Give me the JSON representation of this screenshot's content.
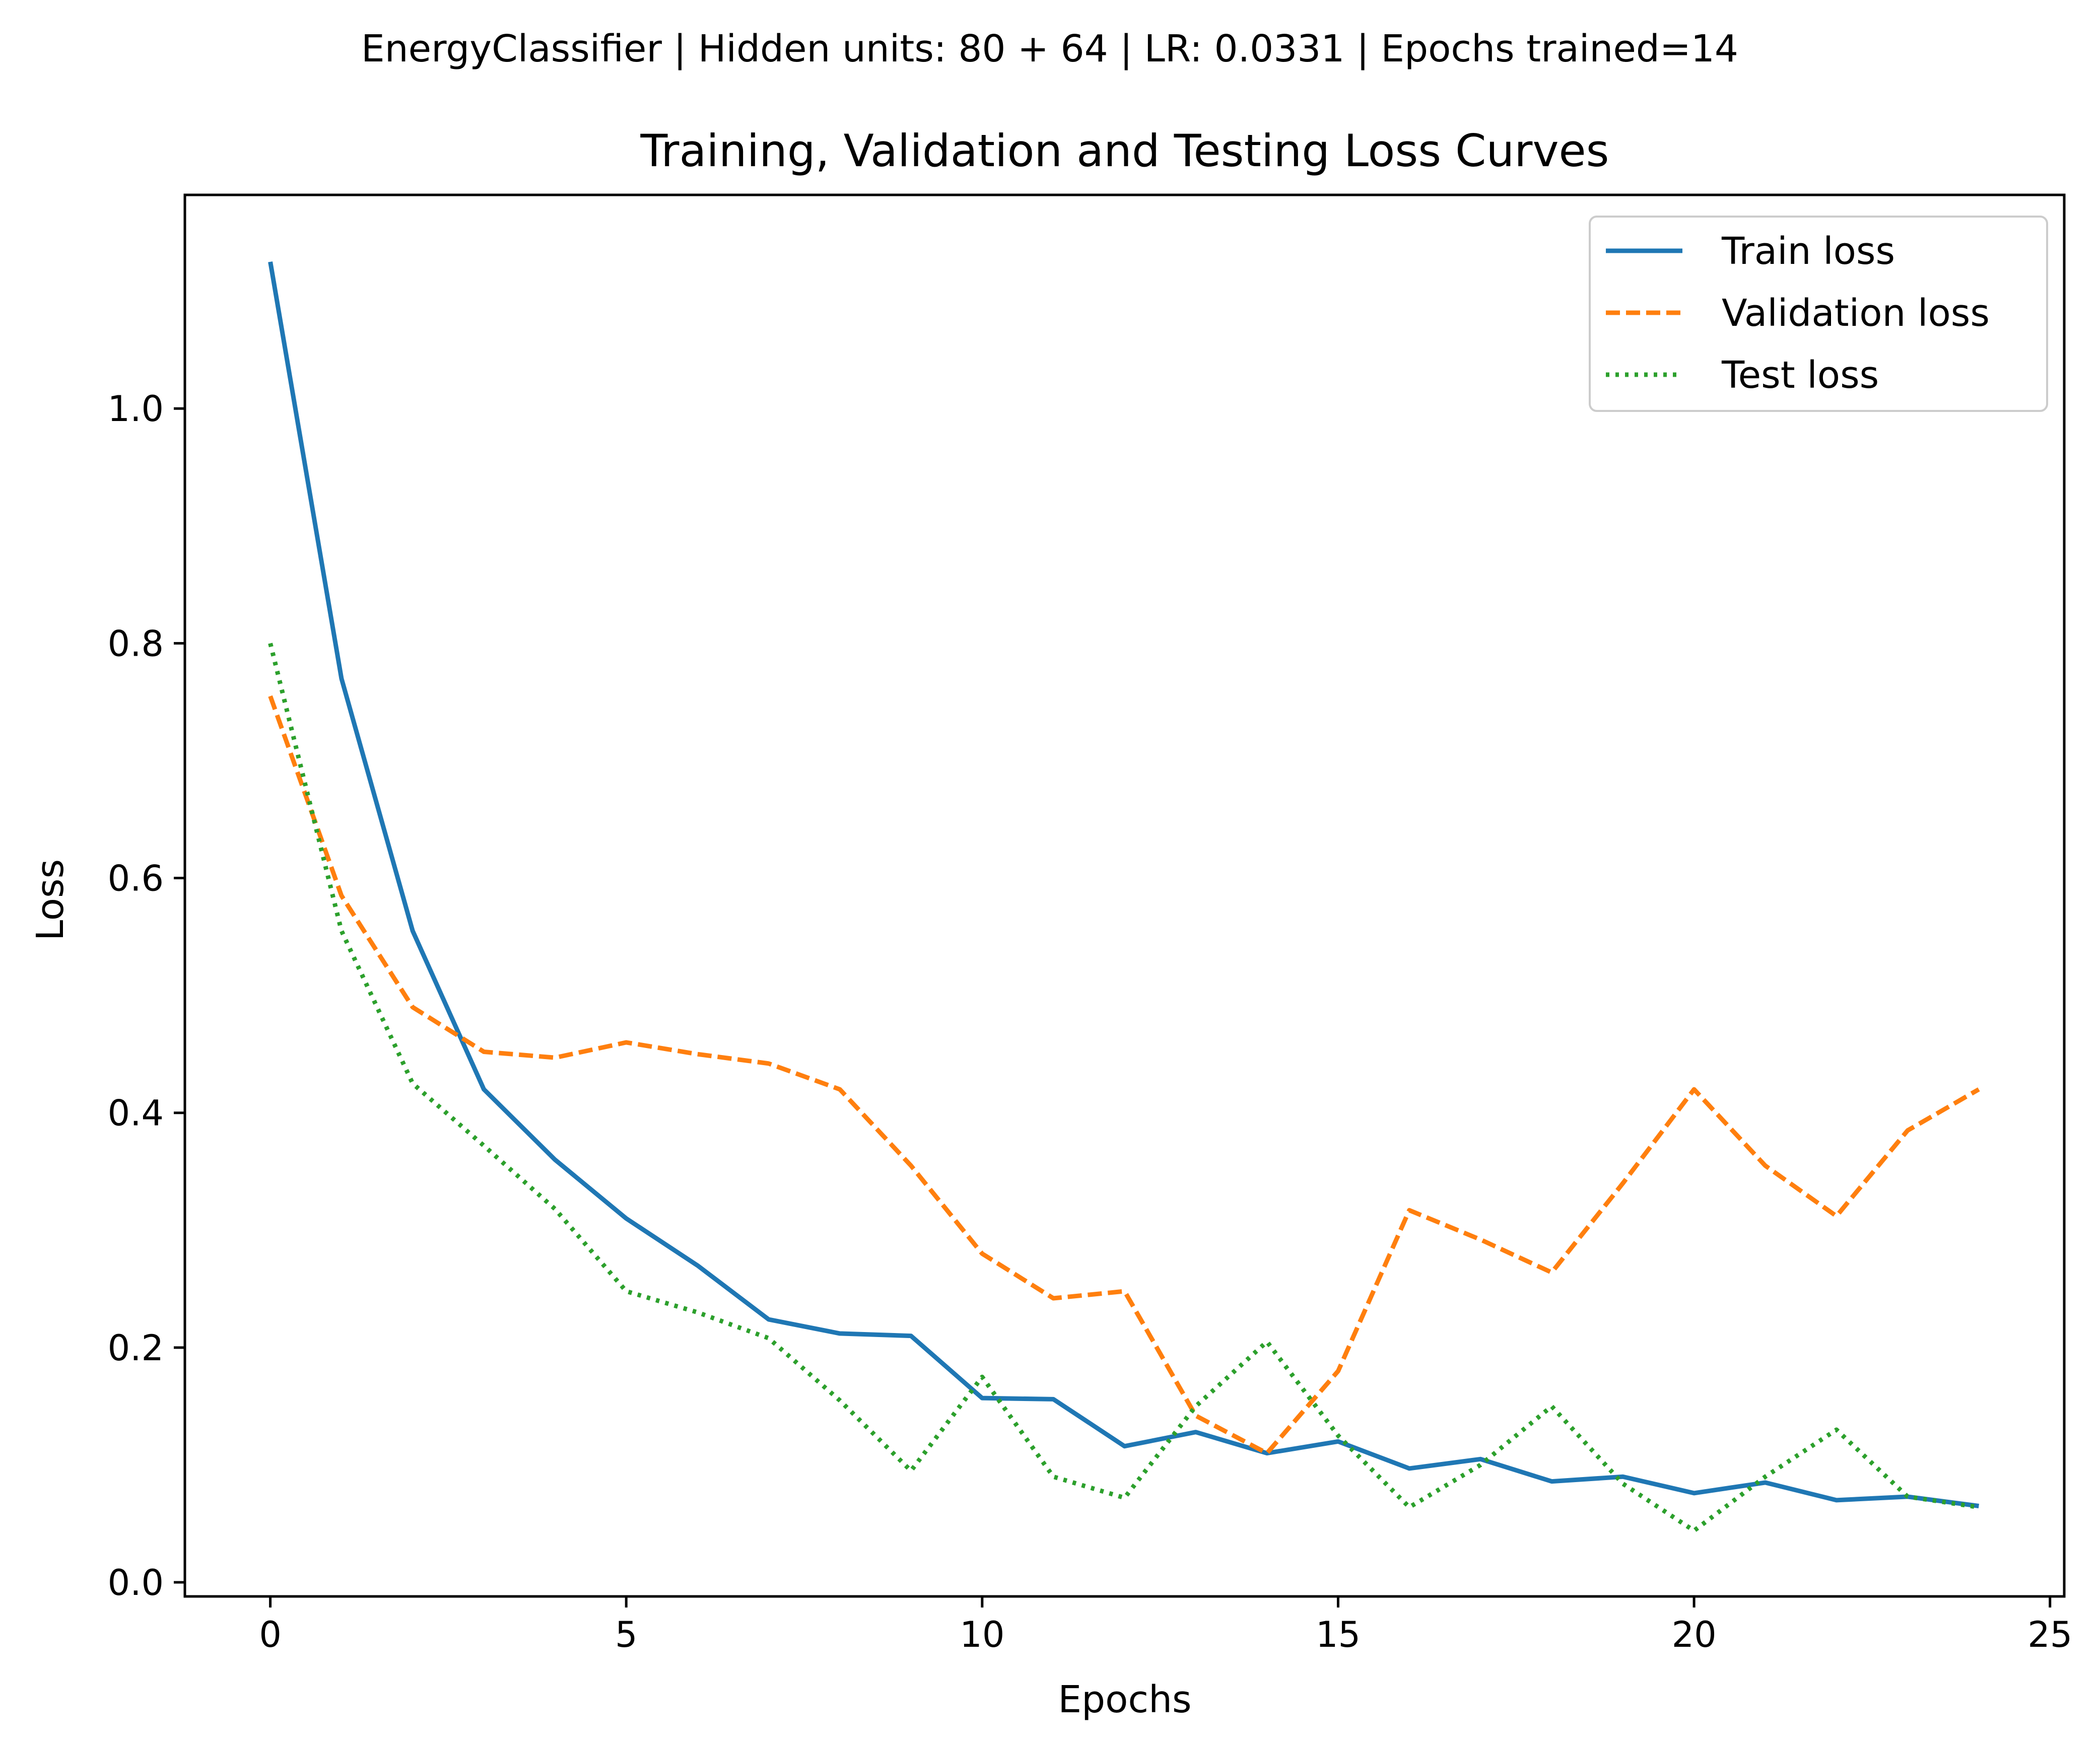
{
  "suptitle": "EnergyClassifier | Hidden units: 80 + 64 | LR: 0.0331 | Epochs trained=14",
  "chart_data": {
    "type": "line",
    "title": "Training, Validation and Testing Loss Curves",
    "xlabel": "Epochs",
    "ylabel": "Loss",
    "xlim": [
      -1.2,
      25.2
    ],
    "ylim": [
      -0.012,
      1.182
    ],
    "x_ticks": [
      0,
      5,
      10,
      15,
      20,
      25
    ],
    "y_ticks": [
      0.0,
      0.2,
      0.4,
      0.6,
      0.8,
      1.0
    ],
    "x_tick_labels": [
      "0",
      "5",
      "10",
      "15",
      "20",
      "25"
    ],
    "y_tick_labels": [
      "0.0",
      "0.2",
      "0.4",
      "0.6",
      "0.8",
      "1.0"
    ],
    "grid": false,
    "legend_position": "top-right",
    "x": [
      0,
      1,
      2,
      3,
      4,
      5,
      6,
      7,
      8,
      9,
      10,
      11,
      12,
      13,
      14,
      15,
      16,
      17,
      18,
      19,
      20,
      21,
      22,
      23,
      24
    ],
    "series": [
      {
        "name": "Train loss",
        "color": "#1f77b4",
        "style": "solid",
        "values": [
          1.125,
          0.77,
          0.555,
          0.42,
          0.36,
          0.31,
          0.27,
          0.224,
          0.212,
          0.21,
          0.157,
          0.156,
          0.116,
          0.128,
          0.11,
          0.12,
          0.097,
          0.105,
          0.086,
          0.09,
          0.076,
          0.085,
          0.07,
          0.073,
          0.065
        ]
      },
      {
        "name": "Validation loss",
        "color": "#ff7f0e",
        "style": "dashed",
        "values": [
          0.755,
          0.585,
          0.49,
          0.452,
          0.447,
          0.46,
          0.45,
          0.442,
          0.42,
          0.355,
          0.28,
          0.242,
          0.248,
          0.142,
          0.11,
          0.18,
          0.317,
          0.292,
          0.264,
          0.34,
          0.42,
          0.355,
          0.312,
          0.385,
          0.42
        ]
      },
      {
        "name": "Test loss",
        "color": "#2ca02c",
        "style": "dotted",
        "values": [
          0.8,
          0.555,
          0.425,
          0.372,
          0.318,
          0.248,
          0.23,
          0.208,
          0.155,
          0.095,
          0.175,
          0.09,
          0.072,
          0.15,
          0.205,
          0.125,
          0.064,
          0.1,
          0.15,
          0.084,
          0.044,
          0.09,
          0.13,
          0.073,
          0.064
        ]
      }
    ]
  }
}
